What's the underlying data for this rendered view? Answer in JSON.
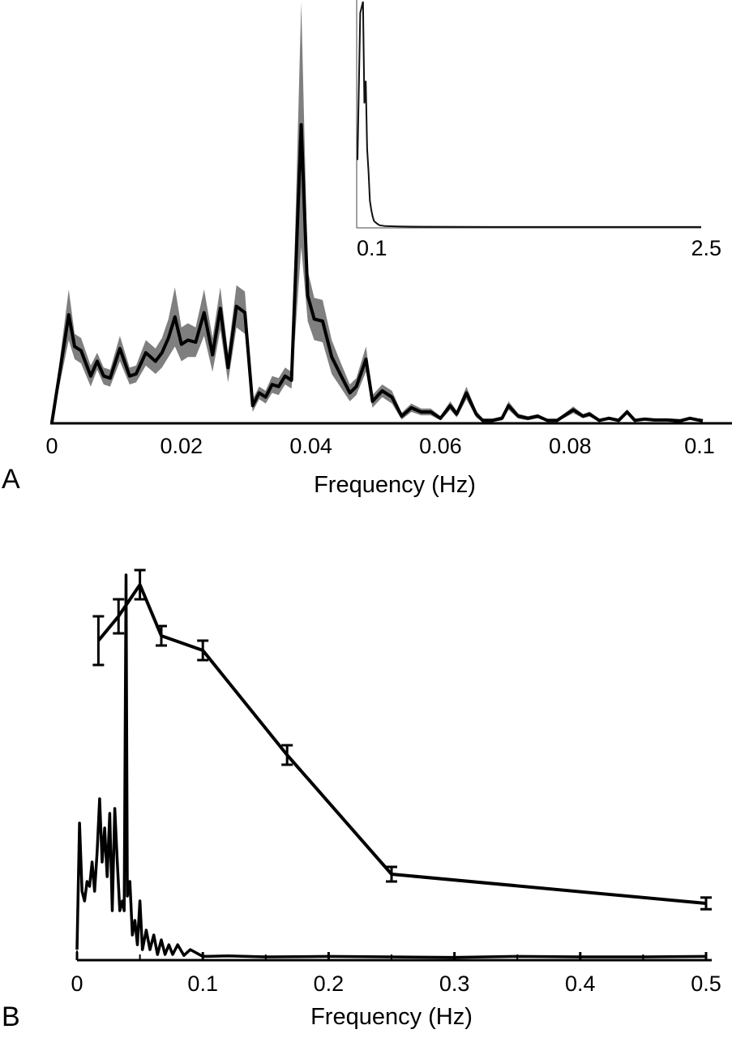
{
  "chart_data": [
    {
      "panel": "A",
      "type": "line",
      "xlabel": "Frequency (Hz)",
      "xlim": [
        0,
        0.105
      ],
      "ylim": [
        0,
        1.0
      ],
      "xticks": [
        0,
        0.02,
        0.04,
        0.06,
        0.08,
        0.1
      ],
      "xtick_labels": [
        "0",
        "0.02",
        "0.04",
        "0.06",
        "0.08",
        "0.1"
      ],
      "series": [
        {
          "style": "mean with shaded spread",
          "x": [
            0,
            0.0026,
            0.0035,
            0.0045,
            0.006,
            0.007,
            0.008,
            0.009,
            0.0105,
            0.012,
            0.013,
            0.0145,
            0.016,
            0.017,
            0.018,
            0.019,
            0.02,
            0.021,
            0.0222,
            0.0235,
            0.0248,
            0.026,
            0.0272,
            0.0285,
            0.0298,
            0.031,
            0.032,
            0.033,
            0.034,
            0.035,
            0.036,
            0.037,
            0.0385,
            0.0395,
            0.0405,
            0.0418,
            0.0432,
            0.0445,
            0.046,
            0.047,
            0.0485,
            0.0495,
            0.051,
            0.0525,
            0.054,
            0.0555,
            0.057,
            0.0585,
            0.06,
            0.0615,
            0.0625,
            0.064,
            0.0655,
            0.0665,
            0.068,
            0.0695,
            0.0705,
            0.072,
            0.0735,
            0.075,
            0.0765,
            0.078,
            0.0795,
            0.0805,
            0.082,
            0.083,
            0.0845,
            0.086,
            0.0875,
            0.0888,
            0.09,
            0.0915,
            0.093,
            0.095,
            0.097,
            0.0985,
            0.0998,
            0.1005
          ],
          "y": [
            0.0,
            0.255,
            0.18,
            0.17,
            0.11,
            0.145,
            0.11,
            0.105,
            0.175,
            0.11,
            0.115,
            0.165,
            0.145,
            0.165,
            0.2,
            0.25,
            0.185,
            0.195,
            0.19,
            0.26,
            0.16,
            0.27,
            0.13,
            0.275,
            0.26,
            0.04,
            0.07,
            0.06,
            0.09,
            0.085,
            0.11,
            0.1,
            0.705,
            0.3,
            0.245,
            0.24,
            0.155,
            0.115,
            0.07,
            0.085,
            0.15,
            0.05,
            0.075,
            0.06,
            0.015,
            0.035,
            0.025,
            0.025,
            0.01,
            0.04,
            0.02,
            0.07,
            0.02,
            0.005,
            0.005,
            0.01,
            0.04,
            0.015,
            0.01,
            0.015,
            0.005,
            0.005,
            0.02,
            0.03,
            0.015,
            0.02,
            0.005,
            0.01,
            0.005,
            0.025,
            0.005,
            0.008,
            0.006,
            0.006,
            0.004,
            0.01,
            0.006,
            0.004
          ],
          "spread": [
            0.0,
            0.06,
            0.03,
            0.03,
            0.025,
            0.02,
            0.02,
            0.02,
            0.03,
            0.02,
            0.02,
            0.03,
            0.03,
            0.035,
            0.045,
            0.07,
            0.04,
            0.04,
            0.035,
            0.055,
            0.04,
            0.05,
            0.035,
            0.05,
            0.05,
            0.015,
            0.015,
            0.015,
            0.02,
            0.02,
            0.02,
            0.02,
            0.29,
            0.06,
            0.05,
            0.05,
            0.04,
            0.03,
            0.02,
            0.02,
            0.03,
            0.015,
            0.015,
            0.015,
            0.008,
            0.01,
            0.008,
            0.008,
            0.005,
            0.01,
            0.008,
            0.015,
            0.008,
            0.004,
            0.004,
            0.005,
            0.01,
            0.006,
            0.005,
            0.005,
            0.003,
            0.003,
            0.006,
            0.008,
            0.005,
            0.006,
            0.003,
            0.004,
            0.003,
            0.006,
            0.003,
            0.003,
            0.003,
            0.003,
            0.002,
            0.003,
            0.003,
            0.002
          ]
        }
      ],
      "inset": {
        "xlim": [
          0,
          2.5
        ],
        "xticks": [
          0.1,
          2.5
        ],
        "xtick_labels": [
          "0.1",
          "2.5"
        ],
        "series": [
          {
            "x": [
              0,
              0.02,
              0.04,
              0.05,
              0.06,
              0.07,
              0.08,
              0.09,
              0.1,
              0.11,
              0.12,
              0.14,
              0.16,
              0.2,
              0.3,
              0.5,
              1.0,
              1.5,
              2.0,
              2.5
            ],
            "y": [
              0.3,
              0.95,
              1.0,
              0.55,
              0.65,
              0.35,
              0.25,
              0.12,
              0.08,
              0.05,
              0.03,
              0.02,
              0.012,
              0.008,
              0.006,
              0.005,
              0.004,
              0.004,
              0.004,
              0.004
            ]
          }
        ]
      }
    },
    {
      "panel": "B",
      "type": "line",
      "xlabel": "Frequency (Hz)",
      "xlim": [
        0,
        0.5
      ],
      "ylim": [
        0,
        1.0
      ],
      "xticks": [
        0,
        0.1,
        0.2,
        0.3,
        0.4,
        0.5
      ],
      "xtick_labels": [
        "0",
        "0.1",
        "0.2",
        "0.3",
        "0.4",
        "0.5"
      ],
      "series": [
        {
          "style": "line with error bars",
          "x": [
            0.017,
            0.033,
            0.05,
            0.067,
            0.1,
            0.167,
            0.25,
            0.5
          ],
          "y": [
            0.655,
            0.705,
            0.77,
            0.665,
            0.635,
            0.42,
            0.175,
            0.115
          ],
          "err": [
            0.05,
            0.035,
            0.03,
            0.02,
            0.02,
            0.02,
            0.015,
            0.012
          ]
        },
        {
          "style": "spectrum",
          "x": [
            0,
            0.002,
            0.004,
            0.006,
            0.008,
            0.01,
            0.012,
            0.014,
            0.016,
            0.018,
            0.02,
            0.022,
            0.024,
            0.026,
            0.028,
            0.03,
            0.032,
            0.034,
            0.036,
            0.0375,
            0.039,
            0.04,
            0.042,
            0.044,
            0.046,
            0.048,
            0.05,
            0.052,
            0.055,
            0.058,
            0.061,
            0.064,
            0.067,
            0.07,
            0.073,
            0.076,
            0.08,
            0.085,
            0.09,
            0.1,
            0.12,
            0.15,
            0.2,
            0.25,
            0.3,
            0.35,
            0.4,
            0.45,
            0.5
          ],
          "y": [
            0.02,
            0.28,
            0.14,
            0.12,
            0.16,
            0.15,
            0.2,
            0.14,
            0.22,
            0.33,
            0.2,
            0.27,
            0.17,
            0.3,
            0.1,
            0.31,
            0.2,
            0.1,
            0.12,
            0.1,
            0.79,
            0.13,
            0.16,
            0.05,
            0.08,
            0.03,
            0.12,
            0.02,
            0.06,
            0.02,
            0.05,
            0.01,
            0.04,
            0.01,
            0.03,
            0.01,
            0.03,
            0.008,
            0.02,
            0.006,
            0.007,
            0.005,
            0.006,
            0.005,
            0.004,
            0.006,
            0.005,
            0.005,
            0.006
          ]
        }
      ]
    }
  ],
  "labels": {
    "panel_a": "A",
    "panel_b": "B"
  }
}
